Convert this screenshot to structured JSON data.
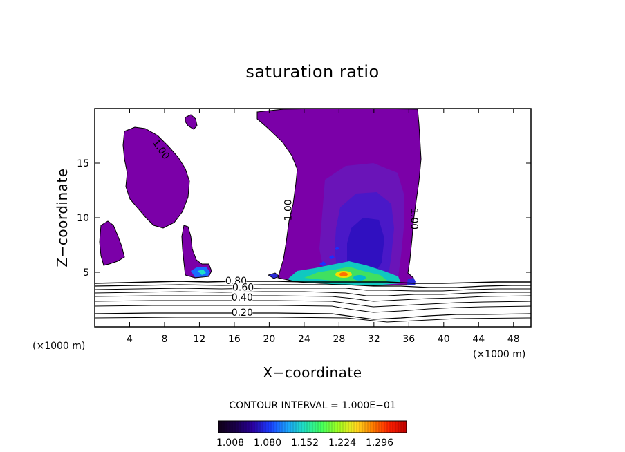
{
  "chart_data": {
    "type": "contour",
    "title": "saturation ratio",
    "xlabel": "X−coordinate",
    "ylabel": "Z−coordinate",
    "x_unit_left": "(×1000 m)",
    "x_unit_right": "(×1000 m)",
    "xlim": [
      0,
      50
    ],
    "ylim": [
      0,
      20
    ],
    "x_ticks": [
      4,
      8,
      12,
      16,
      20,
      24,
      28,
      32,
      36,
      40,
      44,
      48
    ],
    "y_ticks": [
      5,
      10,
      15
    ],
    "contour_interval_text": "CONTOUR INTERVAL = 1.000E−01",
    "contour_labels": [
      {
        "text": "1.00",
        "x": 7.5,
        "y": 16.2,
        "rotate": 55
      },
      {
        "text": "1.00",
        "x": 22.3,
        "y": 10.7,
        "rotate": -90
      },
      {
        "text": "1.00",
        "x": 36.5,
        "y": 9.9,
        "rotate": 90
      },
      {
        "text": "0.80",
        "x": 16.2,
        "y": 4.1,
        "rotate": 0
      },
      {
        "text": "0.60",
        "x": 17.0,
        "y": 3.5,
        "rotate": 0
      },
      {
        "text": "0.40",
        "x": 16.9,
        "y": 2.6,
        "rotate": 0
      },
      {
        "text": "0.20",
        "x": 16.9,
        "y": 1.2,
        "rotate": 0
      }
    ],
    "colorbar": {
      "ticks": [
        "1.008",
        "1.080",
        "1.152",
        "1.224",
        "1.296"
      ],
      "colors": [
        "#100018",
        "#1a004a",
        "#2a00a0",
        "#1a3cff",
        "#1aa0ff",
        "#20e0c0",
        "#40ff60",
        "#a0ff20",
        "#ffe020",
        "#ff8000",
        "#ff2000",
        "#c00000"
      ]
    },
    "region_colors": {
      "base_purple": "#7b00a8",
      "indigo": "#5a12c0",
      "blue": "#2a10c8",
      "cyan": "#00e0c8",
      "green": "#30e050",
      "yellow": "#f0e000",
      "orange": "#ff7000",
      "red": "#e00000"
    },
    "grid": false
  }
}
